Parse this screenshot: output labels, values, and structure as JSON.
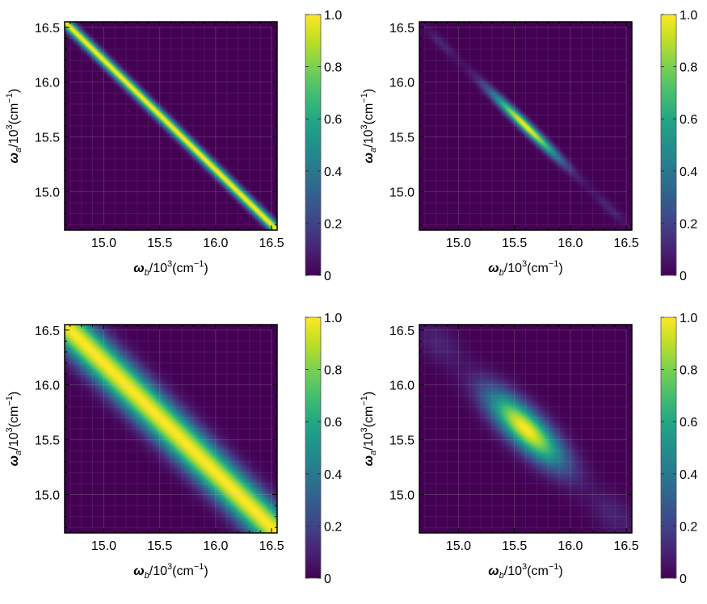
{
  "chart_data": [
    {
      "type": "heatmap",
      "panel": "top-left",
      "xlabel": {
        "symbol": "ω",
        "sub": "b",
        "unit": "/10",
        "exp": "3",
        "paren": "(cm",
        "unit_exp": "−1",
        "close": ")"
      },
      "ylabel": {
        "symbol": "ω",
        "sub": "a",
        "unit": "/10",
        "exp": "3",
        "paren": "(cm",
        "unit_exp": "−1",
        "close": ")"
      },
      "xlim": [
        14.65,
        16.55
      ],
      "ylim": [
        14.65,
        16.55
      ],
      "xticks": [
        "15.0",
        "15.5",
        "16.0",
        "16.5"
      ],
      "yticks": [
        "15.0",
        "15.5",
        "16.0",
        "16.5"
      ],
      "colorbar": {
        "range": [
          0,
          1
        ],
        "ticks": [
          "0",
          "0.2",
          "0.4",
          "0.6",
          "0.8",
          "1.0"
        ],
        "colormap": "viridis"
      },
      "pattern": "narrow anti-diagonal ridge along ωa + ωb = 31.2, uniform peak intensity 1.0"
    },
    {
      "type": "heatmap",
      "panel": "top-right",
      "xlabel": {
        "symbol": "ω",
        "sub": "b",
        "unit": "/10",
        "exp": "3",
        "paren": "(cm",
        "unit_exp": "−1",
        "close": ")"
      },
      "ylabel": {
        "symbol": "ω",
        "sub": "a",
        "unit": "/10",
        "exp": "3",
        "paren": "(cm",
        "unit_exp": "−1",
        "close": ")"
      },
      "xlim": [
        14.65,
        16.55
      ],
      "ylim": [
        14.65,
        16.55
      ],
      "xticks": [
        "15.0",
        "15.5",
        "16.0",
        "16.5"
      ],
      "yticks": [
        "15.0",
        "15.5",
        "16.0",
        "16.5"
      ],
      "colorbar": {
        "range": [
          0,
          1
        ],
        "ticks": [
          "0",
          "0.2",
          "0.4",
          "0.6",
          "0.8",
          "1.0"
        ],
        "colormap": "viridis"
      },
      "pattern": "narrow elliptical peak centered at (15.6, 15.6) with faint side lobes along the anti-diagonal"
    },
    {
      "type": "heatmap",
      "panel": "bottom-left",
      "xlabel": {
        "symbol": "ω",
        "sub": "b",
        "unit": "/10",
        "exp": "3",
        "paren": "(cm",
        "unit_exp": "−1",
        "close": ")"
      },
      "ylabel": {
        "symbol": "ω",
        "sub": "a",
        "unit": "/10",
        "exp": "3",
        "paren": "(cm",
        "unit_exp": "−1",
        "close": ")"
      },
      "xlim": [
        14.65,
        16.55
      ],
      "ylim": [
        14.65,
        16.55
      ],
      "xticks": [
        "15.0",
        "15.5",
        "16.0",
        "16.5"
      ],
      "yticks": [
        "15.0",
        "15.5",
        "16.0",
        "16.5"
      ],
      "colorbar": {
        "range": [
          0,
          1
        ],
        "ticks": [
          "0",
          "0.2",
          "0.4",
          "0.6",
          "0.8",
          "1.0"
        ],
        "colormap": "viridis"
      },
      "pattern": "broad anti-diagonal ridge along ωa + ωb = 31.2, uniform peak intensity 1.0"
    },
    {
      "type": "heatmap",
      "panel": "bottom-right",
      "xlabel": {
        "symbol": "ω",
        "sub": "b",
        "unit": "/10",
        "exp": "3",
        "paren": "(cm",
        "unit_exp": "−1",
        "close": ")"
      },
      "ylabel": {
        "symbol": "ω",
        "sub": "a",
        "unit": "/10",
        "exp": "3",
        "paren": "(cm",
        "unit_exp": "−1",
        "close": ")"
      },
      "xlim": [
        14.65,
        16.55
      ],
      "ylim": [
        14.65,
        16.55
      ],
      "xticks": [
        "15.0",
        "15.5",
        "16.0",
        "16.5"
      ],
      "yticks": [
        "15.0",
        "15.5",
        "16.0",
        "16.5"
      ],
      "colorbar": {
        "range": [
          0,
          1
        ],
        "ticks": [
          "0",
          "0.2",
          "0.4",
          "0.6",
          "0.8",
          "1.0"
        ],
        "colormap": "viridis"
      },
      "pattern": "broad elliptical peak centered at (15.6, 15.6) with faint side lobes along the anti-diagonal"
    }
  ]
}
